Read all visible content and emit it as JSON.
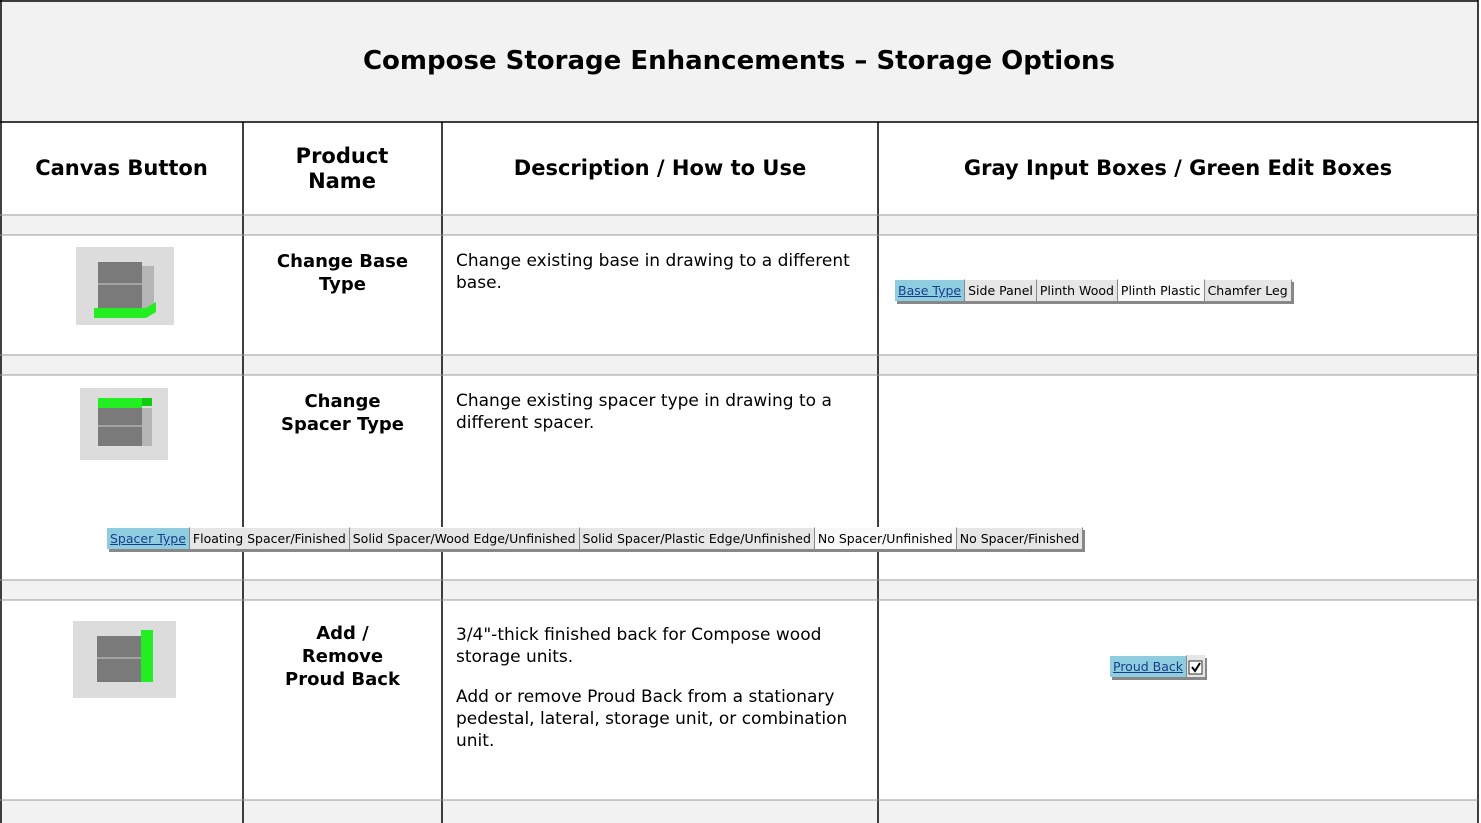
{
  "title": "Compose Storage Enhancements – Storage Options",
  "table": {
    "header": [
      "Canvas Button",
      "Product Name",
      "Description / How to Use",
      "Gray Input Boxes / Green Edit Boxes"
    ],
    "rows": [
      {
        "product": [
          "Change Base",
          "Type"
        ],
        "description": [
          "Change existing base in drawing to a different base."
        ],
        "input_label": "Base Type",
        "options": [
          "Side Panel",
          "Plinth Wood",
          "Plinth Plastic",
          "Chamfer Leg"
        ]
      },
      {
        "product": [
          "Change",
          "Spacer Type"
        ],
        "description": [
          "Change existing spacer type in drawing to a different spacer."
        ],
        "input_label": "Spacer Type",
        "options": [
          "Floating Spacer/Finished",
          "Solid Spacer/Wood Edge/Unfinished",
          "Solid Spacer/Plastic Edge/Unfinished",
          "No Spacer/Unfinished",
          "No Spacer/Finished"
        ]
      },
      {
        "product": [
          "Add /",
          "Remove",
          "Proud Back"
        ],
        "description": [
          "3/4\"-thick finished back for Compose wood storage units.",
          "Add or remove Proud Back from a stationary pedestal, lateral, storage unit, or combination unit."
        ],
        "input_label": "Proud Back"
      }
    ]
  }
}
